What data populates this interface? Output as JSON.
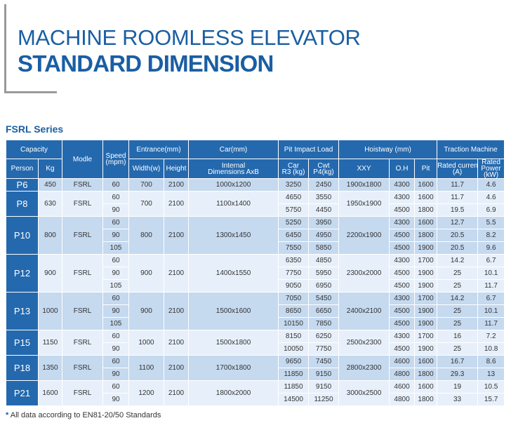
{
  "header": {
    "title_line1": "MACHINE ROOMLESS ELEVATOR",
    "title_line2": "STANDARD DIMENSION"
  },
  "series_title": "FSRL Series",
  "table": {
    "headers": {
      "capacity": "Capacity",
      "person": "Person",
      "kg": "Kg",
      "modle": "Modle",
      "speed": "Speed",
      "speed_unit": "(mpm)",
      "entrance": "Entrance(mm)",
      "width": "Width(w)",
      "height": "Height",
      "car": "Car(mm)",
      "internal_dims_line1": "Internal",
      "internal_dims_line2": "Dimensions  AxB",
      "pit_impact": "Pit Impact Load",
      "car_load_line1": "Car",
      "car_load_line2": "R3  (kg)",
      "cwt_line1": "Cwt",
      "cwt_line2": "P4(kg)",
      "hoistway": "Hoistway (mm)",
      "xxy": "XXY",
      "oh": "O.H",
      "pit": "Pit",
      "traction": "Traction Machine",
      "rated_current_line1": "Rated current",
      "rated_current_line2": "(A)",
      "rated_power_line1": "Rated",
      "rated_power_line2": "Power",
      "rated_power_line3": "(kW)"
    },
    "groups": [
      {
        "person": "P6",
        "kg": "450",
        "modle": "FSRL",
        "width": "700",
        "height": "2100",
        "car_dims": "1000x1200",
        "xxy": "1900x1800",
        "rows": [
          {
            "speed": "60",
            "car_r3": "3250",
            "cwt_p4": "2450",
            "oh": "4300",
            "pit": "1600",
            "current": "11.7",
            "power": "4.6"
          }
        ]
      },
      {
        "person": "P8",
        "kg": "630",
        "modle": "FSRL",
        "width": "700",
        "height": "2100",
        "car_dims": "1100x1400",
        "xxy": "1950x1900",
        "rows": [
          {
            "speed": "60",
            "car_r3": "4650",
            "cwt_p4": "3550",
            "oh": "4300",
            "pit": "1600",
            "current": "11.7",
            "power": "4.6"
          },
          {
            "speed": "90",
            "car_r3": "5750",
            "cwt_p4": "4450",
            "oh": "4500",
            "pit": "1800",
            "current": "19.5",
            "power": "6.9"
          }
        ]
      },
      {
        "person": "P10",
        "kg": "800",
        "modle": "FSRL",
        "width": "800",
        "height": "2100",
        "car_dims": "1300x1450",
        "xxy": "2200x1900",
        "rows": [
          {
            "speed": "60",
            "car_r3": "5250",
            "cwt_p4": "3950",
            "oh": "4300",
            "pit": "1600",
            "current": "12.7",
            "power": "5.5"
          },
          {
            "speed": "90",
            "car_r3": "6450",
            "cwt_p4": "4950",
            "oh": "4500",
            "pit": "1800",
            "current": "20.5",
            "power": "8.2"
          },
          {
            "speed": "105",
            "car_r3": "7550",
            "cwt_p4": "5850",
            "oh": "4500",
            "pit": "1900",
            "current": "20.5",
            "power": "9.6"
          }
        ]
      },
      {
        "person": "P12",
        "kg": "900",
        "modle": "FSRL",
        "width": "900",
        "height": "2100",
        "car_dims": "1400x1550",
        "xxy": "2300x2000",
        "rows": [
          {
            "speed": "60",
            "car_r3": "6350",
            "cwt_p4": "4850",
            "oh": "4300",
            "pit": "1700",
            "current": "14.2",
            "power": "6.7"
          },
          {
            "speed": "90",
            "car_r3": "7750",
            "cwt_p4": "5950",
            "oh": "4500",
            "pit": "1900",
            "current": "25",
            "power": "10.1"
          },
          {
            "speed": "105",
            "car_r3": "9050",
            "cwt_p4": "6950",
            "oh": "4500",
            "pit": "1900",
            "current": "25",
            "power": "11.7"
          }
        ]
      },
      {
        "person": "P13",
        "kg": "1000",
        "modle": "FSRL",
        "width": "900",
        "height": "2100",
        "car_dims": "1500x1600",
        "xxy": "2400x2100",
        "rows": [
          {
            "speed": "60",
            "car_r3": "7050",
            "cwt_p4": "5450",
            "oh": "4300",
            "pit": "1700",
            "current": "14.2",
            "power": "6.7"
          },
          {
            "speed": "90",
            "car_r3": "8650",
            "cwt_p4": "6650",
            "oh": "4500",
            "pit": "1900",
            "current": "25",
            "power": "10.1"
          },
          {
            "speed": "105",
            "car_r3": "10150",
            "cwt_p4": "7850",
            "oh": "4500",
            "pit": "1900",
            "current": "25",
            "power": "11.7"
          }
        ]
      },
      {
        "person": "P15",
        "kg": "1150",
        "modle": "FSRL",
        "width": "1000",
        "height": "2100",
        "car_dims": "1500x1800",
        "xxy": "2500x2300",
        "rows": [
          {
            "speed": "60",
            "car_r3": "8150",
            "cwt_p4": "6250",
            "oh": "4300",
            "pit": "1700",
            "current": "16",
            "power": "7.2"
          },
          {
            "speed": "90",
            "car_r3": "10050",
            "cwt_p4": "7750",
            "oh": "4500",
            "pit": "1900",
            "current": "25",
            "power": "10.8"
          }
        ]
      },
      {
        "person": "P18",
        "kg": "1350",
        "modle": "FSRL",
        "width": "1100",
        "height": "2100",
        "car_dims": "1700x1800",
        "xxy": "2800x2300",
        "rows": [
          {
            "speed": "60",
            "car_r3": "9650",
            "cwt_p4": "7450",
            "oh": "4600",
            "pit": "1600",
            "current": "16.7",
            "power": "8.6"
          },
          {
            "speed": "90",
            "car_r3": "11850",
            "cwt_p4": "9150",
            "oh": "4800",
            "pit": "1800",
            "current": "29.3",
            "power": "13"
          }
        ]
      },
      {
        "person": "P21",
        "kg": "1600",
        "modle": "FSRL",
        "width": "1200",
        "height": "2100",
        "car_dims": "1800x2000",
        "xxy": "3000x2500",
        "rows": [
          {
            "speed": "60",
            "car_r3": "11850",
            "cwt_p4": "9150",
            "oh": "4600",
            "pit": "1600",
            "current": "19",
            "power": "10.5"
          },
          {
            "speed": "90",
            "car_r3": "14500",
            "cwt_p4": "11250",
            "oh": "4800",
            "pit": "1800",
            "current": "33",
            "power": "15.7"
          }
        ]
      }
    ]
  },
  "footnote": {
    "star": "*",
    "text": " All data according to EN81-20/50 Standards"
  },
  "colors": {
    "brand_blue": "#1a5ea3",
    "header_blue": "#2469ae",
    "row_dark": "#c5d9ef",
    "row_light": "#e7f0fa"
  }
}
